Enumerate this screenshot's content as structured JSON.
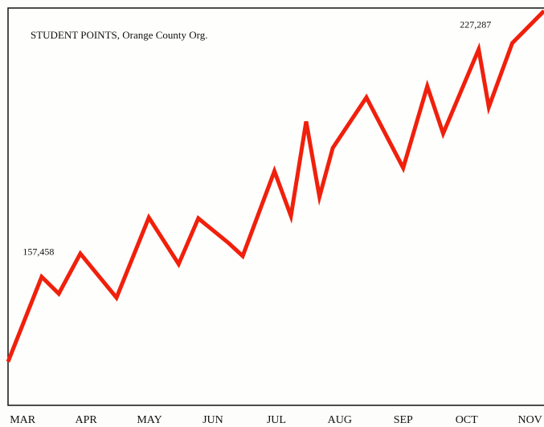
{
  "chart_data": {
    "type": "line",
    "title": "STUDENT POINTS, Orange County Org.",
    "x": [
      -0.23,
      0.3,
      0.57,
      0.91,
      1.48,
      1.99,
      2.46,
      2.77,
      3.25,
      3.47,
      3.97,
      4.23,
      4.47,
      4.68,
      4.89,
      5.42,
      6.0,
      6.38,
      6.63,
      7.19,
      7.35,
      7.72,
      8.22
    ],
    "values": [
      131393,
      157458,
      152294,
      164589,
      151065,
      175655,
      161392,
      175409,
      167786,
      163851,
      189917,
      176146,
      205163,
      182048,
      197048,
      212540,
      190900,
      215982,
      201474,
      227287,
      209589,
      229261,
      239097
    ],
    "value_labels": [
      null,
      "157,458",
      null,
      null,
      null,
      null,
      null,
      null,
      null,
      null,
      null,
      null,
      null,
      null,
      null,
      null,
      null,
      null,
      null,
      "227,287",
      null,
      null,
      null
    ],
    "color": "#f0200c",
    "xlim": [
      -0.23,
      8.22
    ],
    "xticks": [
      {
        "value": 0,
        "label": "MAR"
      },
      {
        "value": 1,
        "label": "APR"
      },
      {
        "value": 2,
        "label": "MAY"
      },
      {
        "value": 3,
        "label": "JUN"
      },
      {
        "value": 4,
        "label": "JUL"
      },
      {
        "value": 5,
        "label": "AUG"
      },
      {
        "value": 6,
        "label": "SEP"
      },
      {
        "value": 7,
        "label": "OCT"
      },
      {
        "value": 8,
        "label": "NOV"
      }
    ],
    "ylim": [
      118000,
      240000
    ]
  }
}
